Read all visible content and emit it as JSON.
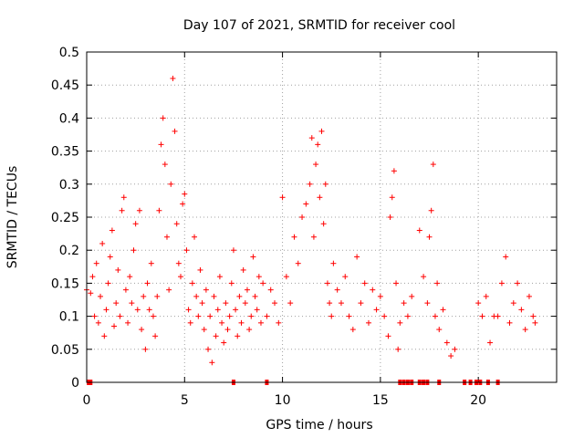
{
  "chart_data": {
    "type": "scatter",
    "title": "Day 107 of 2021, SRMTID for receiver cool",
    "xlabel": "GPS time / hours",
    "ylabel": "SRMTID / TECUs",
    "xlim": [
      0,
      24
    ],
    "ylim": [
      0,
      0.5
    ],
    "xticks": [
      0,
      5,
      10,
      15,
      20
    ],
    "xtick_labels": [
      "0",
      "5",
      "10",
      "15",
      "20"
    ],
    "yticks": [
      0,
      0.05,
      0.1,
      0.15,
      0.2,
      0.25,
      0.3,
      0.35,
      0.4,
      0.45,
      0.5
    ],
    "ytick_labels": [
      "0",
      "0.05",
      "0.1",
      "0.15",
      "0.2",
      "0.25",
      "0.3",
      "0.35",
      "0.4",
      "0.45",
      "0.5"
    ],
    "grid": true,
    "marker": "+",
    "color": "#ff0000",
    "series": [
      {
        "name": "SRMTID",
        "points": [
          [
            0.0,
            0.14
          ],
          [
            0.2,
            0.135
          ],
          [
            0.3,
            0.16
          ],
          [
            0.4,
            0.1
          ],
          [
            0.5,
            0.18
          ],
          [
            0.6,
            0.09
          ],
          [
            0.7,
            0.13
          ],
          [
            0.8,
            0.21
          ],
          [
            0.9,
            0.07
          ],
          [
            1.0,
            0.11
          ],
          [
            1.1,
            0.15
          ],
          [
            1.2,
            0.19
          ],
          [
            1.3,
            0.23
          ],
          [
            1.4,
            0.085
          ],
          [
            1.5,
            0.12
          ],
          [
            1.6,
            0.17
          ],
          [
            1.7,
            0.1
          ],
          [
            1.8,
            0.26
          ],
          [
            1.9,
            0.28
          ],
          [
            2.0,
            0.14
          ],
          [
            2.1,
            0.09
          ],
          [
            2.2,
            0.16
          ],
          [
            2.3,
            0.12
          ],
          [
            2.4,
            0.2
          ],
          [
            2.5,
            0.24
          ],
          [
            2.6,
            0.11
          ],
          [
            2.7,
            0.26
          ],
          [
            2.8,
            0.08
          ],
          [
            2.9,
            0.13
          ],
          [
            3.0,
            0.05
          ],
          [
            3.1,
            0.15
          ],
          [
            3.2,
            0.11
          ],
          [
            3.3,
            0.18
          ],
          [
            3.4,
            0.1
          ],
          [
            3.5,
            0.07
          ],
          [
            3.6,
            0.13
          ],
          [
            3.7,
            0.26
          ],
          [
            3.8,
            0.36
          ],
          [
            3.9,
            0.4
          ],
          [
            4.0,
            0.33
          ],
          [
            4.1,
            0.22
          ],
          [
            4.2,
            0.14
          ],
          [
            4.3,
            0.3
          ],
          [
            4.4,
            0.46
          ],
          [
            4.5,
            0.38
          ],
          [
            4.6,
            0.24
          ],
          [
            4.7,
            0.18
          ],
          [
            4.8,
            0.16
          ],
          [
            4.9,
            0.27
          ],
          [
            5.0,
            0.285
          ],
          [
            5.1,
            0.2
          ],
          [
            5.2,
            0.11
          ],
          [
            5.3,
            0.09
          ],
          [
            5.4,
            0.15
          ],
          [
            5.5,
            0.22
          ],
          [
            5.6,
            0.13
          ],
          [
            5.7,
            0.1
          ],
          [
            5.8,
            0.17
          ],
          [
            5.9,
            0.12
          ],
          [
            6.0,
            0.08
          ],
          [
            6.1,
            0.14
          ],
          [
            6.2,
            0.05
          ],
          [
            6.3,
            0.1
          ],
          [
            6.4,
            0.03
          ],
          [
            6.5,
            0.13
          ],
          [
            6.6,
            0.07
          ],
          [
            6.7,
            0.11
          ],
          [
            6.8,
            0.16
          ],
          [
            6.9,
            0.09
          ],
          [
            7.0,
            0.06
          ],
          [
            7.1,
            0.12
          ],
          [
            7.2,
            0.08
          ],
          [
            7.3,
            0.1
          ],
          [
            7.4,
            0.15
          ],
          [
            7.5,
            0.2
          ],
          [
            7.6,
            0.11
          ],
          [
            7.7,
            0.07
          ],
          [
            7.8,
            0.13
          ],
          [
            7.9,
            0.09
          ],
          [
            8.0,
            0.17
          ],
          [
            8.1,
            0.12
          ],
          [
            8.2,
            0.14
          ],
          [
            8.3,
            0.08
          ],
          [
            8.4,
            0.1
          ],
          [
            8.5,
            0.19
          ],
          [
            8.6,
            0.13
          ],
          [
            8.7,
            0.11
          ],
          [
            8.8,
            0.16
          ],
          [
            8.9,
            0.09
          ],
          [
            9.0,
            0.15
          ],
          [
            9.2,
            0.1
          ],
          [
            9.4,
            0.14
          ],
          [
            9.6,
            0.12
          ],
          [
            9.8,
            0.09
          ],
          [
            10.0,
            0.28
          ],
          [
            10.2,
            0.16
          ],
          [
            10.4,
            0.12
          ],
          [
            10.6,
            0.22
          ],
          [
            10.8,
            0.18
          ],
          [
            11.0,
            0.25
          ],
          [
            11.2,
            0.27
          ],
          [
            11.4,
            0.3
          ],
          [
            11.5,
            0.37
          ],
          [
            11.6,
            0.22
          ],
          [
            11.7,
            0.33
          ],
          [
            11.8,
            0.36
          ],
          [
            11.9,
            0.28
          ],
          [
            12.0,
            0.38
          ],
          [
            12.1,
            0.24
          ],
          [
            12.2,
            0.3
          ],
          [
            12.3,
            0.15
          ],
          [
            12.4,
            0.12
          ],
          [
            12.5,
            0.1
          ],
          [
            12.6,
            0.18
          ],
          [
            12.8,
            0.14
          ],
          [
            13.0,
            0.12
          ],
          [
            13.2,
            0.16
          ],
          [
            13.4,
            0.1
          ],
          [
            13.6,
            0.08
          ],
          [
            13.8,
            0.19
          ],
          [
            14.0,
            0.12
          ],
          [
            14.2,
            0.15
          ],
          [
            14.4,
            0.09
          ],
          [
            14.6,
            0.14
          ],
          [
            14.8,
            0.11
          ],
          [
            15.0,
            0.13
          ],
          [
            15.2,
            0.1
          ],
          [
            15.4,
            0.07
          ],
          [
            15.5,
            0.25
          ],
          [
            15.6,
            0.28
          ],
          [
            15.7,
            0.32
          ],
          [
            15.8,
            0.15
          ],
          [
            15.9,
            0.05
          ],
          [
            16.0,
            0.09
          ],
          [
            16.2,
            0.12
          ],
          [
            16.4,
            0.1
          ],
          [
            16.6,
            0.13
          ],
          [
            17.0,
            0.23
          ],
          [
            17.2,
            0.16
          ],
          [
            17.4,
            0.12
          ],
          [
            17.5,
            0.22
          ],
          [
            17.6,
            0.26
          ],
          [
            17.7,
            0.33
          ],
          [
            17.8,
            0.1
          ],
          [
            17.9,
            0.15
          ],
          [
            18.0,
            0.08
          ],
          [
            18.2,
            0.11
          ],
          [
            18.4,
            0.06
          ],
          [
            18.6,
            0.04
          ],
          [
            18.8,
            0.05
          ],
          [
            20.0,
            0.12
          ],
          [
            20.2,
            0.1
          ],
          [
            20.4,
            0.13
          ],
          [
            20.6,
            0.06
          ],
          [
            20.8,
            0.1
          ],
          [
            21.0,
            0.1
          ],
          [
            21.2,
            0.15
          ],
          [
            21.4,
            0.19
          ],
          [
            21.6,
            0.09
          ],
          [
            21.8,
            0.12
          ],
          [
            22.0,
            0.15
          ],
          [
            22.2,
            0.11
          ],
          [
            22.4,
            0.08
          ],
          [
            22.6,
            0.13
          ],
          [
            22.8,
            0.1
          ],
          [
            22.9,
            0.09
          ]
        ]
      }
    ],
    "zero_points_x": [
      0.1,
      0.2,
      7.5,
      9.2,
      16.0,
      16.2,
      16.4,
      16.6,
      17.0,
      17.2,
      17.4,
      18.0,
      19.3,
      19.6,
      19.9,
      20.1,
      20.5,
      21.0
    ]
  }
}
